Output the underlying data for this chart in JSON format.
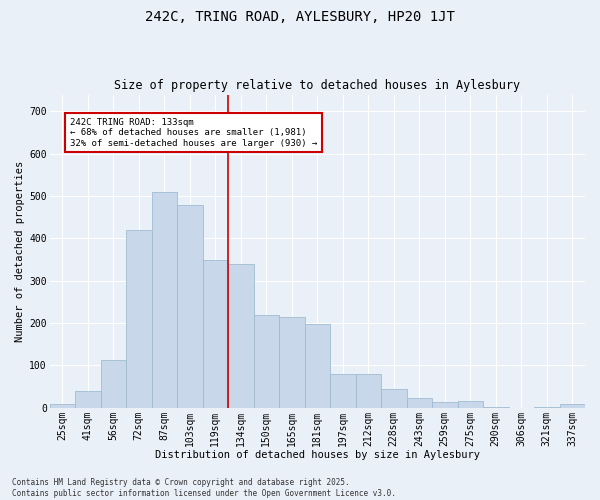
{
  "title": "242C, TRING ROAD, AYLESBURY, HP20 1JT",
  "subtitle": "Size of property relative to detached houses in Aylesbury",
  "xlabel": "Distribution of detached houses by size in Aylesbury",
  "ylabel": "Number of detached properties",
  "categories": [
    "25sqm",
    "41sqm",
    "56sqm",
    "72sqm",
    "87sqm",
    "103sqm",
    "119sqm",
    "134sqm",
    "150sqm",
    "165sqm",
    "181sqm",
    "197sqm",
    "212sqm",
    "228sqm",
    "243sqm",
    "259sqm",
    "275sqm",
    "290sqm",
    "306sqm",
    "321sqm",
    "337sqm"
  ],
  "values": [
    8,
    40,
    113,
    420,
    510,
    480,
    350,
    340,
    220,
    215,
    198,
    80,
    80,
    45,
    23,
    14,
    15,
    2,
    0,
    3,
    8
  ],
  "bar_color": "#c8d8ea",
  "bar_edge_color": "#a0bcd0",
  "bg_color": "#eaf0f8",
  "grid_color": "#ffffff",
  "vline_x_index": 7,
  "annotation_title": "242C TRING ROAD: 133sqm",
  "annotation_line1": "← 68% of detached houses are smaller (1,981)",
  "annotation_line2": "32% of semi-detached houses are larger (930) →",
  "annotation_box_facecolor": "#ffffff",
  "annotation_box_edgecolor": "#cc0000",
  "vline_color": "#cc0000",
  "footer_line1": "Contains HM Land Registry data © Crown copyright and database right 2025.",
  "footer_line2": "Contains public sector information licensed under the Open Government Licence v3.0.",
  "ylim": [
    0,
    740
  ],
  "yticks": [
    0,
    100,
    200,
    300,
    400,
    500,
    600,
    700
  ],
  "title_fontsize": 10,
  "subtitle_fontsize": 8.5,
  "axis_label_fontsize": 7.5,
  "tick_fontsize": 7,
  "annotation_fontsize": 6.5,
  "footer_fontsize": 5.5
}
